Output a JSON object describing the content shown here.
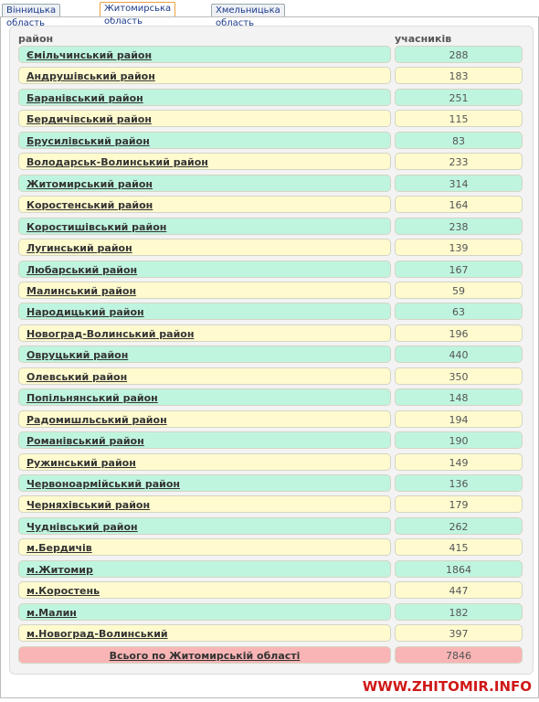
{
  "tabs": [
    "Вінницька область",
    "Житомирська область",
    "Хмельницька область"
  ],
  "table": {
    "headers": [
      "район",
      "учасників"
    ],
    "rows": [
      [
        "Ємільчинський район",
        288
      ],
      [
        "Андрушівський район",
        183
      ],
      [
        "Баранівський район",
        251
      ],
      [
        "Бердичівський район",
        115
      ],
      [
        "Брусилівський район",
        83
      ],
      [
        "Володарськ-Волинський район",
        233
      ],
      [
        "Житомирський район",
        314
      ],
      [
        "Коростенський район",
        164
      ],
      [
        "Коростишівський район",
        238
      ],
      [
        "Лугинський район",
        139
      ],
      [
        "Любарський район",
        167
      ],
      [
        "Малинський район",
        59
      ],
      [
        "Народицький район",
        63
      ],
      [
        "Новоград-Волинський район",
        196
      ],
      [
        "Овруцький район",
        440
      ],
      [
        "Олевський район",
        350
      ],
      [
        "Попільнянський район",
        148
      ],
      [
        "Радомишльський район",
        194
      ],
      [
        "Романівський район",
        190
      ],
      [
        "Ружинський район",
        149
      ],
      [
        "Червоноармійський район",
        136
      ],
      [
        "Черняхівський район",
        179
      ],
      [
        "Чуднівський район",
        262
      ],
      [
        "м.Бердичів",
        415
      ],
      [
        "м.Житомир",
        1864
      ],
      [
        "м.Коростень",
        447
      ],
      [
        "м.Малин",
        182
      ],
      [
        "м.Новоград-Волинський",
        397
      ]
    ],
    "total": [
      "Всього по Житомирській області",
      7846
    ]
  },
  "watermark": "WWW.ZHITOMIR.INFO"
}
